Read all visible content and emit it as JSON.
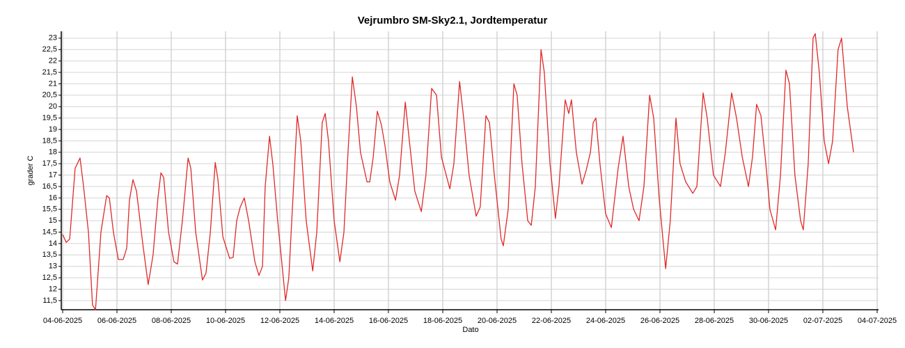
{
  "chart_data": {
    "type": "line",
    "title": "Vejrumbro SM-Sky2.1, Jordtemperatur",
    "x_label": "Dato",
    "y_label": "grader C",
    "color": "#e02828",
    "grid": true,
    "xlim": [
      0,
      30
    ],
    "ylim": [
      11.1,
      23.3
    ],
    "xticks": [
      {
        "value": 0,
        "label": "04-06-2025"
      },
      {
        "value": 2,
        "label": "06-06-2025"
      },
      {
        "value": 4,
        "label": "08-06-2025"
      },
      {
        "value": 6,
        "label": "10-06-2025"
      },
      {
        "value": 8,
        "label": "12-06-2025"
      },
      {
        "value": 10,
        "label": "14-06-2025"
      },
      {
        "value": 12,
        "label": "16-06-2025"
      },
      {
        "value": 14,
        "label": "18-06-2025"
      },
      {
        "value": 16,
        "label": "20-06-2025"
      },
      {
        "value": 18,
        "label": "22-06-2025"
      },
      {
        "value": 20,
        "label": "24-06-2025"
      },
      {
        "value": 22,
        "label": "26-06-2025"
      },
      {
        "value": 24,
        "label": "28-06-2025"
      },
      {
        "value": 26,
        "label": "30-06-2025"
      },
      {
        "value": 28,
        "label": "02-07-2025"
      },
      {
        "value": 30,
        "label": "04-07-2025"
      }
    ],
    "yticks": [
      {
        "value": 11.5,
        "label": "11,5"
      },
      12,
      {
        "value": 12.5,
        "label": "12,5"
      },
      13,
      {
        "value": 13.5,
        "label": "13,5"
      },
      14,
      {
        "value": 14.5,
        "label": "14,5"
      },
      15,
      {
        "value": 15.5,
        "label": "15,5"
      },
      16,
      {
        "value": 16.5,
        "label": "16,5"
      },
      17,
      {
        "value": 17.5,
        "label": "17,5"
      },
      18,
      {
        "value": 18.5,
        "label": "18,5"
      },
      19,
      {
        "value": 19.5,
        "label": "19,5"
      },
      20,
      {
        "value": 20.5,
        "label": "20,5"
      },
      21,
      {
        "value": 21.5,
        "label": "21,5"
      },
      22,
      {
        "value": 22.5,
        "label": "22,5"
      },
      23
    ],
    "x": [
      0,
      0.13,
      0.26,
      0.46,
      0.64,
      0.77,
      0.95,
      1.1,
      1.21,
      1.41,
      1.62,
      1.72,
      1.87,
      2.05,
      2.23,
      2.36,
      2.46,
      2.59,
      2.72,
      2.95,
      3.15,
      3.33,
      3.51,
      3.62,
      3.72,
      3.9,
      4.1,
      4.23,
      4.41,
      4.51,
      4.62,
      4.72,
      4.9,
      5.15,
      5.28,
      5.44,
      5.62,
      5.72,
      5.9,
      6.15,
      6.28,
      6.41,
      6.54,
      6.69,
      6.85,
      7.08,
      7.23,
      7.36,
      7.46,
      7.62,
      7.74,
      7.92,
      8.21,
      8.33,
      8.46,
      8.64,
      8.77,
      8.97,
      9.21,
      9.36,
      9.56,
      9.67,
      9.79,
      10.0,
      10.21,
      10.36,
      10.51,
      10.67,
      10.82,
      10.97,
      11.21,
      11.31,
      11.44,
      11.59,
      11.74,
      11.87,
      12.05,
      12.26,
      12.41,
      12.62,
      12.77,
      12.97,
      13.21,
      13.38,
      13.59,
      13.77,
      13.95,
      14.26,
      14.41,
      14.62,
      14.77,
      14.97,
      15.23,
      15.38,
      15.59,
      15.72,
      15.9,
      16.15,
      16.23,
      16.41,
      16.62,
      16.74,
      16.92,
      17.13,
      17.26,
      17.41,
      17.62,
      17.74,
      17.95,
      18.15,
      18.28,
      18.51,
      18.64,
      18.74,
      18.92,
      19.13,
      19.28,
      19.44,
      19.54,
      19.64,
      19.79,
      20.0,
      20.21,
      20.46,
      20.64,
      20.85,
      21.03,
      21.23,
      21.41,
      21.62,
      21.77,
      21.97,
      22.21,
      22.38,
      22.59,
      22.74,
      22.95,
      23.21,
      23.36,
      23.59,
      23.74,
      23.97,
      24.23,
      24.41,
      24.64,
      24.82,
      25.03,
      25.26,
      25.41,
      25.56,
      25.72,
      25.9,
      26.05,
      26.26,
      26.44,
      26.64,
      26.77,
      26.97,
      27.18,
      27.28,
      27.46,
      27.64,
      27.72,
      27.87,
      28.05,
      28.21,
      28.36,
      28.56,
      28.69,
      28.9,
      29.13
    ],
    "values": [
      14.4,
      14.05,
      14.2,
      17.3,
      17.75,
      16.5,
      14.5,
      11.3,
      11.1,
      14.5,
      16.1,
      16.0,
      14.5,
      13.3,
      13.3,
      13.8,
      15.9,
      16.8,
      16.3,
      14.0,
      12.2,
      13.5,
      16.0,
      17.1,
      16.9,
      14.5,
      13.2,
      13.1,
      15.0,
      16.3,
      17.75,
      17.3,
      14.5,
      12.4,
      12.7,
      14.5,
      17.55,
      16.8,
      14.3,
      13.35,
      13.4,
      15.0,
      15.6,
      16.0,
      15.0,
      13.2,
      12.6,
      13.0,
      16.5,
      18.7,
      17.5,
      15.0,
      11.5,
      12.5,
      15.5,
      19.6,
      18.5,
      15.0,
      12.8,
      14.5,
      19.3,
      19.7,
      18.5,
      15.0,
      13.2,
      14.5,
      18.0,
      21.3,
      20.0,
      18.0,
      16.7,
      16.7,
      17.8,
      19.8,
      19.2,
      18.3,
      16.7,
      15.9,
      17.0,
      20.2,
      18.5,
      16.3,
      15.4,
      17.0,
      20.8,
      20.5,
      17.8,
      16.4,
      17.5,
      21.1,
      19.5,
      17.0,
      15.2,
      15.6,
      19.6,
      19.3,
      17.0,
      14.2,
      13.9,
      15.5,
      21.0,
      20.5,
      17.5,
      15.0,
      14.8,
      16.5,
      22.5,
      21.5,
      17.5,
      15.1,
      16.5,
      20.3,
      19.7,
      20.3,
      18.0,
      16.6,
      17.2,
      18.0,
      19.3,
      19.5,
      17.5,
      15.3,
      14.7,
      17.3,
      18.7,
      16.5,
      15.5,
      15.0,
      16.5,
      20.5,
      19.5,
      16.0,
      12.9,
      15.0,
      19.5,
      17.5,
      16.7,
      16.2,
      16.5,
      20.6,
      19.5,
      17.0,
      16.5,
      18.0,
      20.6,
      19.5,
      17.8,
      16.5,
      17.8,
      20.1,
      19.6,
      17.5,
      15.5,
      14.6,
      17.0,
      21.6,
      21.0,
      17.0,
      15.0,
      14.6,
      17.5,
      23.0,
      23.2,
      21.5,
      18.5,
      17.5,
      18.5,
      22.5,
      23.0,
      20.0,
      18.0
    ]
  }
}
